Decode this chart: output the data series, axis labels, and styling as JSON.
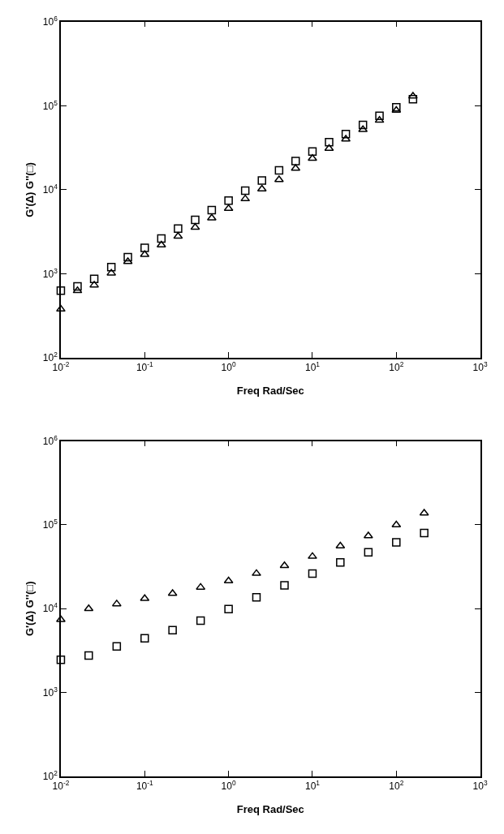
{
  "chart_data": [
    {
      "type": "scatter",
      "xlabel": "Freq Rad/Sec",
      "ylabel": "G'(Δ) G''(□)",
      "log": "xy",
      "xlim": [
        0.01,
        1000
      ],
      "ylim": [
        100,
        1000000
      ],
      "xticks": [
        {
          "value": 0.01,
          "label": "10$^{-2}$"
        },
        {
          "value": 0.1,
          "label": "10$^{-1}$"
        },
        {
          "value": 1,
          "label": "10$^{0}$"
        },
        {
          "value": 10,
          "label": "10$^{1}$"
        },
        {
          "value": 100,
          "label": "10$^{2}$"
        },
        {
          "value": 1000,
          "label": "10$^{3}$"
        }
      ],
      "yticks": [
        {
          "value": 100,
          "label": "10$^{2}$"
        },
        {
          "value": 1000,
          "label": "10$^{3}$"
        },
        {
          "value": 10000,
          "label": "10$^{4}$"
        },
        {
          "value": 100000,
          "label": "10$^{5}$"
        },
        {
          "value": 1000000,
          "label": "10$^{6}$"
        }
      ],
      "x": [
        0.01,
        0.0158,
        0.025,
        0.04,
        0.063,
        0.1,
        0.158,
        0.25,
        0.4,
        0.63,
        1,
        1.58,
        2.5,
        4,
        6.3,
        10,
        15.8,
        25,
        40,
        63,
        100,
        158
      ],
      "series": [
        {
          "color": "#000000",
          "marker": "triangle",
          "values": [
            380,
            630,
            735,
            1020,
            1400,
            1700,
            2200,
            2800,
            3570,
            4620,
            5980,
            7800,
            10200,
            13200,
            18000,
            23600,
            31000,
            40000,
            52000,
            67000,
            88000,
            130000
          ]
        },
        {
          "color": "#000000",
          "marker": "square",
          "values": [
            630,
            710,
            870,
            1200,
            1580,
            2040,
            2630,
            3450,
            4380,
            5740,
            7440,
            9770,
            12900,
            17000,
            22000,
            28600,
            36800,
            46000,
            59000,
            76000,
            96000,
            120000
          ]
        }
      ]
    },
    {
      "type": "scatter",
      "xlabel": "Freq Rad/Sec",
      "ylabel": "G'(Δ) G''(□)",
      "log": "xy",
      "xlim": [
        0.01,
        1000
      ],
      "ylim": [
        100,
        1000000
      ],
      "xticks": [
        {
          "value": 0.01,
          "label": "10$^{-2}$"
        },
        {
          "value": 0.1,
          "label": "10$^{-1}$"
        },
        {
          "value": 1,
          "label": "10$^{0}$"
        },
        {
          "value": 10,
          "label": "10$^{1}$"
        },
        {
          "value": 100,
          "label": "10$^{2}$"
        },
        {
          "value": 1000,
          "label": "10$^{3}$"
        }
      ],
      "yticks": [
        {
          "value": 100,
          "label": "10$^{2}$"
        },
        {
          "value": 1000,
          "label": "10$^{3}$"
        },
        {
          "value": 10000,
          "label": "10$^{4}$"
        },
        {
          "value": 100000,
          "label": "10$^{5}$"
        },
        {
          "value": 1000000,
          "label": "10$^{6}$"
        }
      ],
      "x": [
        0.01,
        0.0215,
        0.0464,
        0.1,
        0.215,
        0.464,
        1,
        2.15,
        4.64,
        10,
        21.5,
        46.4,
        100,
        215
      ],
      "series": [
        {
          "color": "#000000",
          "marker": "triangle",
          "values": [
            7400,
            10000,
            11400,
            13200,
            15200,
            18000,
            21500,
            26300,
            32600,
            42000,
            56000,
            74000,
            100000,
            138000
          ]
        },
        {
          "color": "#000000",
          "marker": "square",
          "values": [
            2460,
            2760,
            3560,
            4440,
            5530,
            7200,
            9900,
            13700,
            19000,
            26200,
            35600,
            47000,
            62000,
            80000
          ]
        }
      ]
    }
  ]
}
